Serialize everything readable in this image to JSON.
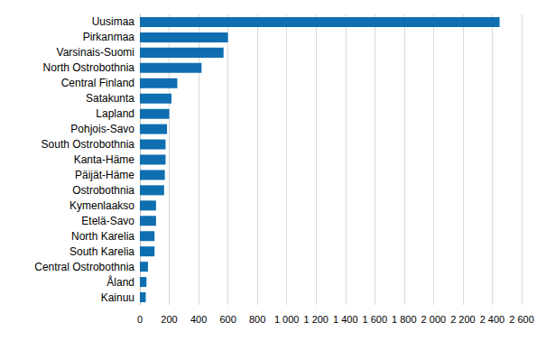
{
  "chart_data": {
    "type": "bar",
    "orientation": "horizontal",
    "categories": [
      "Uusimaa",
      "Pirkanmaa",
      "Varsinais-Suomi",
      "North Ostrobothnia",
      "Central Finland",
      "Satakunta",
      "Lapland",
      "Pohjois-Savo",
      "South Ostrobothnia",
      "Kanta-Häme",
      "Päijät-Häme",
      "Ostrobothnia",
      "Kymenlaakso",
      "Etelä-Savo",
      "North Karelia",
      "South Karelia",
      "Central Ostrobothnia",
      "Åland",
      "Kainuu"
    ],
    "values": [
      2450,
      600,
      570,
      420,
      255,
      215,
      200,
      185,
      175,
      175,
      170,
      165,
      110,
      110,
      100,
      100,
      55,
      45,
      40
    ],
    "color": "#0e6eb0",
    "xlim": [
      0,
      2600
    ],
    "xticks": [
      0,
      200,
      400,
      600,
      800,
      {
        "value": 1000,
        "label": "1 000"
      },
      {
        "value": 1200,
        "label": "1 200"
      },
      {
        "value": 1400,
        "label": "1 400"
      },
      {
        "value": 1600,
        "label": "1 600"
      },
      {
        "value": 1800,
        "label": "1 800"
      },
      {
        "value": 2000,
        "label": "2 000"
      },
      {
        "value": 2200,
        "label": "2 200"
      },
      {
        "value": 2400,
        "label": "2 400"
      },
      {
        "value": 2600,
        "label": "2 600"
      }
    ],
    "grid": true
  }
}
